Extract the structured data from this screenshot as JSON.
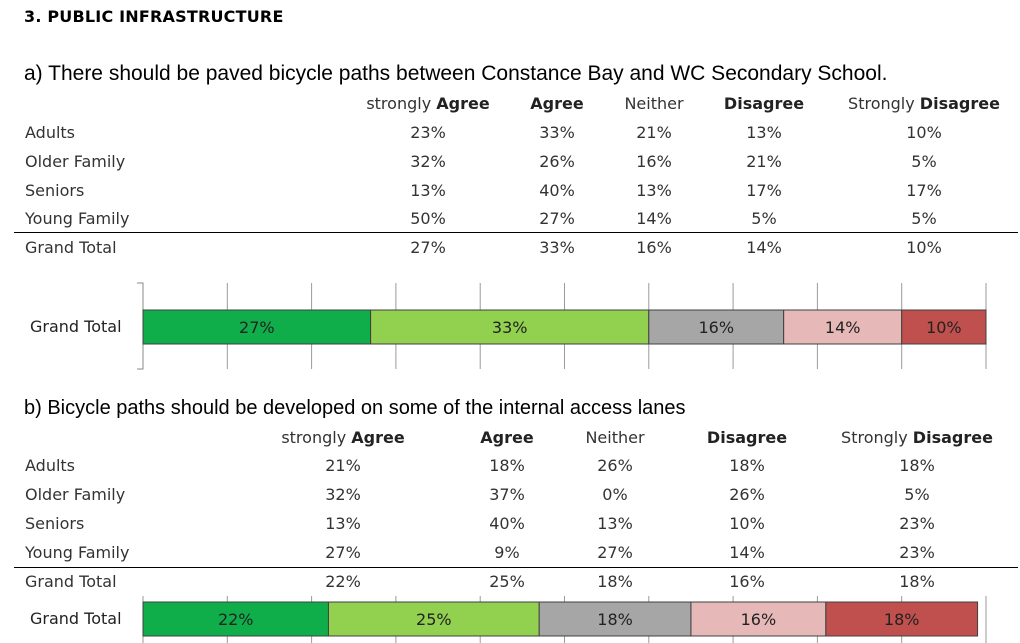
{
  "section_title": "3. PUBLIC INFRASTRUCTURE",
  "columns": [
    {
      "pre": "strongly ",
      "bold": "Agree"
    },
    {
      "pre": "",
      "bold": "Agree"
    },
    {
      "pre": "Neither",
      "bold": ""
    },
    {
      "pre": "",
      "bold": "Disagree"
    },
    {
      "pre": "Strongly ",
      "bold": "Disagree"
    }
  ],
  "colors": {
    "strongly_agree": "#0fae4b",
    "agree": "#92d050",
    "neither": "#a6a6a6",
    "disagree": "#e6b9b8",
    "strongly_disagree": "#c0504d"
  },
  "question_a": {
    "title": "a) There should be paved bicycle paths between Constance Bay and WC Secondary School.",
    "rows": [
      {
        "label": "Adults",
        "values": [
          "23%",
          "33%",
          "21%",
          "13%",
          "10%"
        ]
      },
      {
        "label": "Older Family",
        "values": [
          "32%",
          "26%",
          "16%",
          "21%",
          "5%"
        ]
      },
      {
        "label": "Seniors",
        "values": [
          "13%",
          "40%",
          "13%",
          "17%",
          "17%"
        ]
      },
      {
        "label": "Young Family",
        "values": [
          "50%",
          "27%",
          "14%",
          "5%",
          "5%"
        ]
      }
    ],
    "total": {
      "label": "Grand Total",
      "values": [
        "27%",
        "33%",
        "16%",
        "14%",
        "10%"
      ]
    }
  },
  "question_b": {
    "title": "b)  Bicycle paths should be developed on some of the internal access lanes",
    "rows": [
      {
        "label": "Adults",
        "values": [
          "21%",
          "18%",
          "26%",
          "18%",
          "18%"
        ]
      },
      {
        "label": "Older Family",
        "values": [
          "32%",
          "37%",
          "0%",
          "26%",
          "5%"
        ]
      },
      {
        "label": "Seniors",
        "values": [
          "13%",
          "40%",
          "13%",
          "10%",
          "23%"
        ]
      },
      {
        "label": "Young Family",
        "values": [
          "27%",
          "9%",
          "27%",
          "14%",
          "23%"
        ]
      }
    ],
    "total": {
      "label": "Grand Total",
      "values": [
        "22%",
        "25%",
        "18%",
        "16%",
        "18%"
      ]
    }
  },
  "chart_data": [
    {
      "type": "bar",
      "stacked": true,
      "orientation": "horizontal",
      "categories": [
        "Grand Total"
      ],
      "series": [
        {
          "values": [
            27
          ],
          "label": "27%"
        },
        {
          "values": [
            33
          ],
          "label": "33%"
        },
        {
          "values": [
            16
          ],
          "label": "16%"
        },
        {
          "values": [
            14
          ],
          "label": "14%"
        },
        {
          "values": [
            10
          ],
          "label": "10%"
        }
      ],
      "xlim": [
        0,
        100
      ],
      "grid": true
    },
    {
      "type": "bar",
      "stacked": true,
      "orientation": "horizontal",
      "categories": [
        "Grand Total"
      ],
      "series": [
        {
          "values": [
            22
          ],
          "label": "22%"
        },
        {
          "values": [
            25
          ],
          "label": "25%"
        },
        {
          "values": [
            18
          ],
          "label": "18%"
        },
        {
          "values": [
            16
          ],
          "label": "16%"
        },
        {
          "values": [
            18
          ],
          "label": "18%"
        }
      ],
      "xlim": [
        0,
        100
      ],
      "grid": true
    }
  ]
}
